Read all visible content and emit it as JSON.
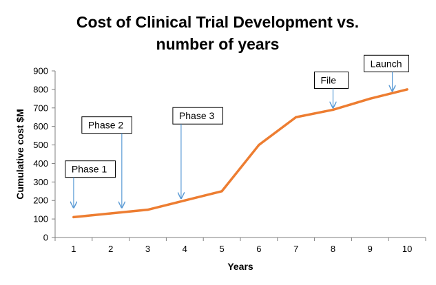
{
  "chart_data": {
    "type": "line",
    "title_lines": [
      "Cost of Clinical Trial Development vs.",
      "number of years"
    ],
    "xlabel": "Years",
    "ylabel": "Cumulative cost $M",
    "x": [
      1,
      2,
      3,
      4,
      5,
      6,
      7,
      8,
      9,
      10
    ],
    "series": [
      {
        "values": [
          110,
          130,
          150,
          200,
          250,
          500,
          650,
          690,
          750,
          800
        ]
      }
    ],
    "xlim": [
      0.5,
      10.5
    ],
    "ylim": [
      0,
      900
    ],
    "yticks": [
      0,
      100,
      200,
      300,
      400,
      500,
      600,
      700,
      800,
      900
    ],
    "xticks": [
      1,
      2,
      3,
      4,
      5,
      6,
      7,
      8,
      9,
      10
    ],
    "grid": false,
    "legend": "none",
    "annotations": [
      {
        "label": "Phase 1",
        "x": 1.0,
        "y": 150
      },
      {
        "label": "Phase 2",
        "x": 2.3,
        "y": 150
      },
      {
        "label": "Phase 3",
        "x": 3.9,
        "y": 200
      },
      {
        "label": "File",
        "x": 8.0,
        "y": 690
      },
      {
        "label": "Launch",
        "x": 9.6,
        "y": 780
      }
    ],
    "colors": {
      "line": "#ed7d31",
      "arrow": "#5b9bd5",
      "axis": "#7f7f7f",
      "box_border": "#000000"
    }
  }
}
